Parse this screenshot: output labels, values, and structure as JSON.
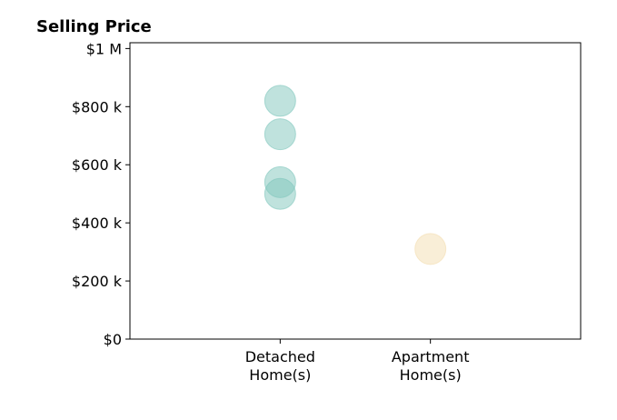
{
  "chart_data": {
    "type": "scatter",
    "title": "Selling Price",
    "categories": [
      "Detached\nHome(s)",
      "Apartment\nHome(s)"
    ],
    "y_tick_labels": [
      "$0",
      "$200 k",
      "$400 k",
      "$600 k",
      "$800 k",
      "$1 M"
    ],
    "y_ticks": [
      0,
      200000,
      400000,
      600000,
      800000,
      1000000
    ],
    "ylim": [
      0,
      1020000
    ],
    "xlim": [
      -1,
      2
    ],
    "grid": false,
    "series": [
      {
        "category_index": 0,
        "color": "#7fc6bc",
        "values": [
          820000,
          705000,
          540000,
          500000
        ]
      },
      {
        "category_index": 1,
        "color": "#f4ddb0",
        "values": [
          310000
        ]
      }
    ]
  }
}
